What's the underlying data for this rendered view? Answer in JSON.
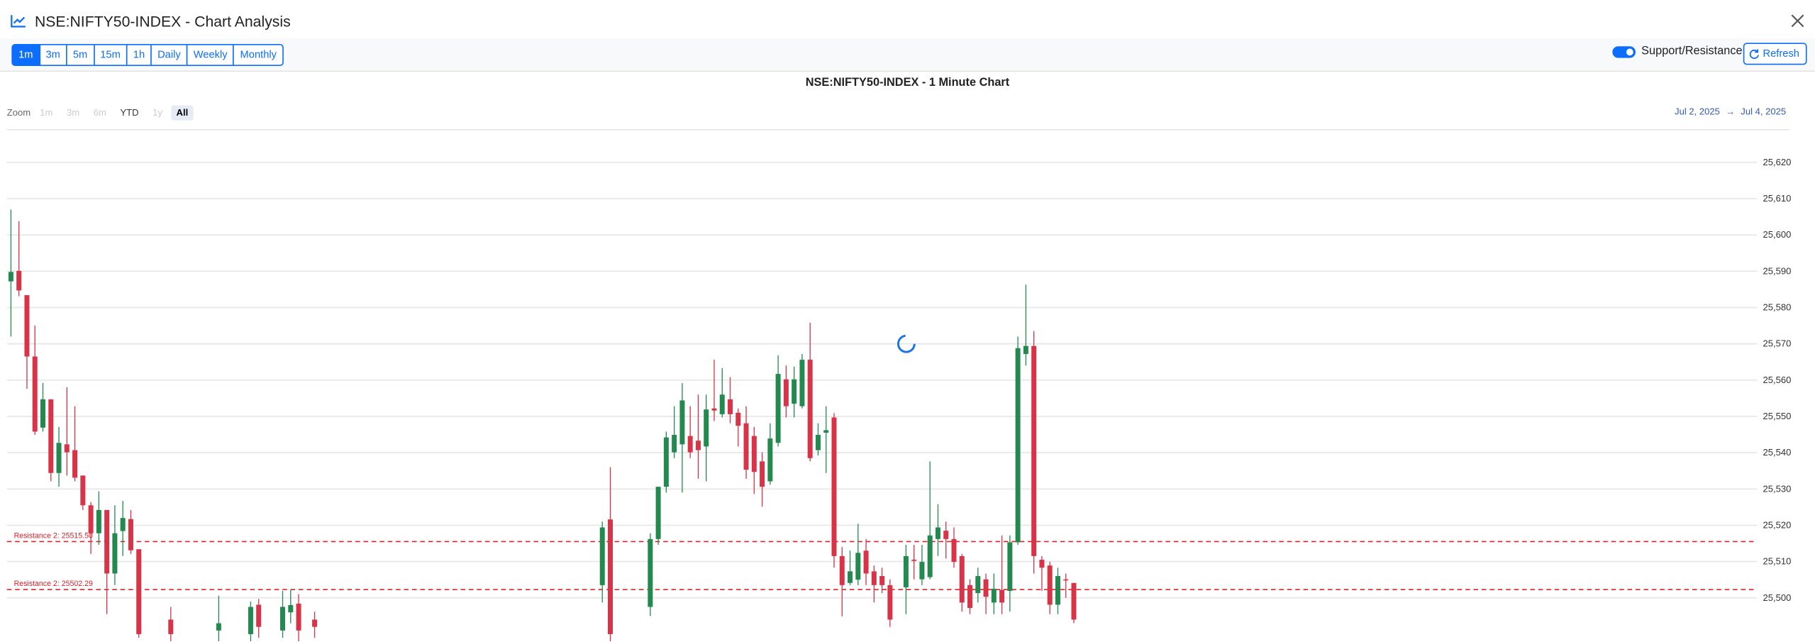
{
  "header": {
    "title": "NSE:NIFTY50-INDEX - Chart Analysis"
  },
  "toolbar": {
    "timeframes": [
      {
        "label": "1m",
        "active": true
      },
      {
        "label": "3m",
        "active": false
      },
      {
        "label": "5m",
        "active": false
      },
      {
        "label": "15m",
        "active": false
      },
      {
        "label": "1h",
        "active": false
      },
      {
        "label": "Daily",
        "active": false
      },
      {
        "label": "Weekly",
        "active": false
      },
      {
        "label": "Monthly",
        "active": false
      }
    ],
    "toggle": {
      "label": "Support/Resistance",
      "on": true
    },
    "refresh": "Refresh"
  },
  "zoom": {
    "label": "Zoom",
    "buttons": [
      {
        "label": "1m",
        "enabled": false,
        "selected": false
      },
      {
        "label": "3m",
        "enabled": false,
        "selected": false
      },
      {
        "label": "6m",
        "enabled": false,
        "selected": false
      },
      {
        "label": "YTD",
        "enabled": true,
        "selected": false
      },
      {
        "label": "1y",
        "enabled": false,
        "selected": false
      },
      {
        "label": "All",
        "enabled": true,
        "selected": true
      }
    ],
    "range_from": "Jul 2, 2025",
    "range_arrow": "→",
    "range_to": "Jul 4, 2025"
  },
  "chart_data": {
    "type": "candlestick",
    "title": "NSE:NIFTY50-INDEX - 1 Minute Chart",
    "up_color": "#23894f",
    "down_color": "#d93348",
    "grid": true,
    "xlim": [
      -0.5,
      218.5
    ],
    "ylim": [
      25488,
      25629
    ],
    "yticks": [
      {
        "value": 25500,
        "label": "25,500"
      },
      {
        "value": 25510,
        "label": "25,510"
      },
      {
        "value": 25520,
        "label": "25,520"
      },
      {
        "value": 25530,
        "label": "25,530"
      },
      {
        "value": 25540,
        "label": "25,540"
      },
      {
        "value": 25550,
        "label": "25,550"
      },
      {
        "value": 25560,
        "label": "25,560"
      },
      {
        "value": 25570,
        "label": "25,570"
      },
      {
        "value": 25580,
        "label": "25,580"
      },
      {
        "value": 25590,
        "label": "25,590"
      },
      {
        "value": 25600,
        "label": "25,600"
      },
      {
        "value": 25610,
        "label": "25,610"
      },
      {
        "value": 25620,
        "label": "25,620"
      }
    ],
    "annotations": [
      {
        "label": "Resistance 2: 25515.50",
        "value": 25515.5,
        "color": "#e0202a"
      },
      {
        "label": "Resistance 2: 25502.29",
        "value": 25502.29,
        "color": "#e0202a"
      }
    ],
    "x": [
      0,
      1,
      2,
      3,
      4,
      5,
      6,
      7,
      8,
      9,
      10,
      11,
      12,
      13,
      14,
      15,
      16,
      20,
      26,
      30,
      31,
      34,
      35,
      36,
      38,
      74,
      75,
      80,
      81,
      82,
      83,
      84,
      85,
      86,
      87,
      88,
      89,
      90,
      91,
      92,
      93,
      94,
      95,
      96,
      97,
      98,
      99,
      100,
      101,
      102,
      103,
      104,
      105,
      106,
      107,
      108,
      109,
      110,
      112,
      113,
      114,
      115,
      116,
      117,
      118,
      119,
      120,
      121,
      122,
      123,
      124,
      125,
      126,
      127,
      128,
      129,
      130,
      131,
      132,
      133
    ],
    "open": [
      25587.2,
      25590.1,
      25583.4,
      25566.5,
      25546.9,
      25554.7,
      25534.4,
      25542.3,
      25540.7,
      25533.7,
      25525.5,
      25517.8,
      25524.2,
      25506.7,
      25518.4,
      25521.7,
      25513.4,
      25494,
      25491,
      25490,
      25498.1,
      25491,
      25496,
      25498.4,
      25494,
      25503.5,
      25521.6,
      25497.5,
      25516.2,
      25530.6,
      25540.1,
      25542.3,
      25544.6,
      25543.3,
      25541.7,
      25552.2,
      25550.6,
      25554.7,
      25551,
      25548.1,
      25544.6,
      25537.6,
      25532.1,
      25542.7,
      25560.2,
      25553.5,
      25552.8,
      25565.6,
      25540.7,
      25545.5,
      25549.7,
      25511.5,
      25504.1,
      25505,
      25513,
      25507.3,
      25506,
      25503.5,
      25502.9,
      25510.5,
      25505.1,
      25505.7,
      25516.2,
      25518.5,
      25516.2,
      25511.5,
      25503.5,
      25501.3,
      25505.1,
      25498.7,
      25502.2,
      25501.9,
      25515.3,
      25567.2,
      25569.4,
      25510.5,
      25508.9,
      25498.1,
      25505.1,
      25504.1
    ],
    "high": [
      25607,
      25603.8,
      25583.4,
      25575,
      25559.2,
      25554.7,
      25547.1,
      25558,
      25552.8,
      25533.7,
      25526.4,
      25529.3,
      25524.2,
      25525.5,
      25526.7,
      25524.2,
      25513.4,
      25497.5,
      25500.6,
      25499,
      25499.7,
      25501.9,
      25502.2,
      25501,
      25496.2,
      25521,
      25536,
      25517.8,
      25530.6,
      25545.8,
      25552.8,
      25559.2,
      25552.8,
      25556,
      25556,
      25565.6,
      25563.3,
      25560.8,
      25552.2,
      25552.8,
      25547.1,
      25540.1,
      25548.1,
      25566.8,
      25564,
      25563.7,
      25567.2,
      25575.8,
      25548.1,
      25552.8,
      25550.9,
      25514,
      25513,
      25520.4,
      25516.2,
      25508.9,
      25508.3,
      25505.1,
      25514.6,
      25514.6,
      25514.6,
      25537.6,
      25525.8,
      25521,
      25519.4,
      25512.1,
      25505.1,
      25508.3,
      25506.7,
      25506.7,
      25517.2,
      25517.2,
      25572,
      25586.3,
      25573.5,
      25511.5,
      25509.9,
      25508.3,
      25506.7,
      25504.1
    ],
    "low": [
      25572,
      25583.1,
      25557.6,
      25544.9,
      25545.8,
      25532.1,
      25530.6,
      25533.7,
      25532.1,
      25524.2,
      25512.1,
      25514.6,
      25495.5,
      25503.5,
      25511.5,
      25512.1,
      25489,
      25486,
      25487,
      25488,
      25489,
      25489,
      25493,
      25488,
      25489,
      25498.7,
      25488,
      25495,
      25514.6,
      25529,
      25538.5,
      25529,
      25538.5,
      25532.8,
      25532.1,
      25548.7,
      25549.7,
      25548.1,
      25541.7,
      25532.8,
      25528.6,
      25525.1,
      25531.2,
      25541.7,
      25549.7,
      25549.7,
      25552.2,
      25537.6,
      25539.2,
      25534.4,
      25508.3,
      25494.9,
      25503.5,
      25503.5,
      25503.5,
      25498.7,
      25501.3,
      25492,
      25495.5,
      25505.1,
      25503.5,
      25505.1,
      25511.5,
      25510.8,
      25508.3,
      25496.2,
      25495.5,
      25498.7,
      25495.5,
      25495.5,
      25495.5,
      25496.2,
      25514.6,
      25564,
      25506.7,
      25501.9,
      25495.5,
      25495.5,
      25500,
      25493
    ],
    "close": [
      25589.8,
      25584.7,
      25566.5,
      25545.8,
      25554.7,
      25534.4,
      25542.7,
      25540.1,
      25533.1,
      25525.5,
      25517.8,
      25524.2,
      25506.7,
      25517.8,
      25522,
      25513.1,
      25490,
      25490,
      25493,
      25497.5,
      25492,
      25497.5,
      25498,
      25491,
      25492,
      25519.4,
      25490,
      25516.2,
      25530.6,
      25544.2,
      25544.9,
      25554.4,
      25540.1,
      25540.7,
      25551.9,
      25551.6,
      25556,
      25550.6,
      25547.4,
      25535.3,
      25534.7,
      25530.6,
      25543.9,
      25561.7,
      25552.8,
      25560.2,
      25565.6,
      25538.5,
      25544.9,
      25546.2,
      25511.5,
      25503.5,
      25507.3,
      25512.4,
      25506.7,
      25503.5,
      25503.5,
      25494,
      25511.5,
      25510.2,
      25509.9,
      25517.2,
      25519.4,
      25516.2,
      25509.9,
      25498.7,
      25497.2,
      25506,
      25500.3,
      25502.5,
      25498.7,
      25515.3,
      25568.8,
      25569.4,
      25511.5,
      25508.3,
      25498.1,
      25506,
      25504.8,
      25494
    ]
  }
}
